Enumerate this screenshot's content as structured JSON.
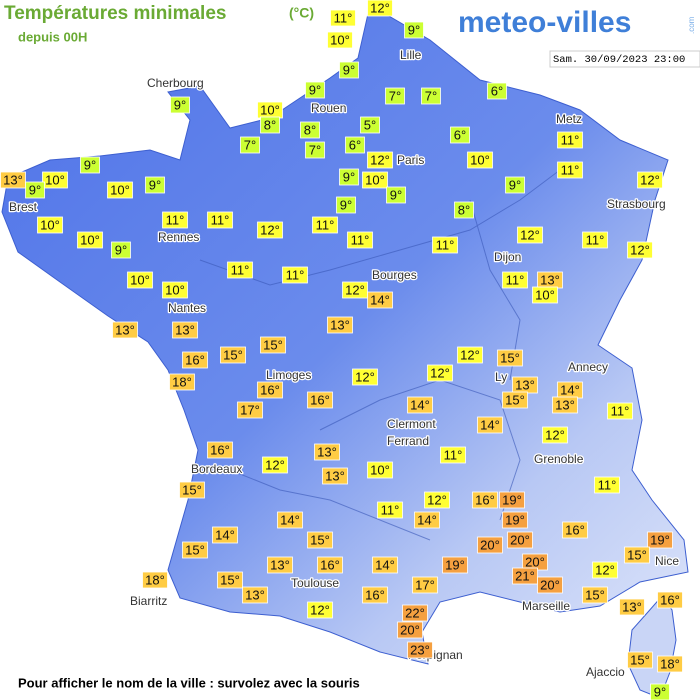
{
  "header": {
    "title": "Températures minimales",
    "unit": "(°C)",
    "subtitle": "depuis 00H",
    "logo": "meteo-villes",
    "logo_suffix": ".com",
    "timestamp": "Sam. 30/09/2023 23:00"
  },
  "cities": [
    "Cherbourg",
    "Lille",
    "Rouen",
    "Paris",
    "Metz",
    "Brest",
    "Strasbourg",
    "Rennes",
    "Dijon",
    "Bourges",
    "Nantes",
    "Annecy",
    "Limoges",
    "Ly",
    "Clermont",
    "Ferrand",
    "Grenoble",
    "Bordeaux",
    "Nice",
    "Toulouse",
    "Biarritz",
    "Marseille",
    "Perpignan",
    "Ajaccio"
  ],
  "temperatures": [
    "12°",
    "11°",
    "9°",
    "10°",
    "9°",
    "9°",
    "7°",
    "7°",
    "6°",
    "9°",
    "10°",
    "8°",
    "8°",
    "5°",
    "7°",
    "7°",
    "6°",
    "6°",
    "11°",
    "12°",
    "10°",
    "9°",
    "11°",
    "13°",
    "10°",
    "9°",
    "10°",
    "9°",
    "9°",
    "10°",
    "9°",
    "9°",
    "12°",
    "9°",
    "8°",
    "10°",
    "11°",
    "11°",
    "12°",
    "11°",
    "10°",
    "9°",
    "11°",
    "11°",
    "12°",
    "11°",
    "12°",
    "10°",
    "10°",
    "11°",
    "11°",
    "12°",
    "14°",
    "11°",
    "13°",
    "10°",
    "13°",
    "13°",
    "13°",
    "16°",
    "15°",
    "15°",
    "12°",
    "15°",
    "18°",
    "12°",
    "12°",
    "16°",
    "16°",
    "13°",
    "14°",
    "15°",
    "13°",
    "17°",
    "11°",
    "14°",
    "14°",
    "12°",
    "16°",
    "13°",
    "11°",
    "12°",
    "10°",
    "13°",
    "15°",
    "11°",
    "12°",
    "16°",
    "19°",
    "11°",
    "14°",
    "14°",
    "19°",
    "16°",
    "14°",
    "15°",
    "20°",
    "20°",
    "19°",
    "15°",
    "15°",
    "13°",
    "16°",
    "14°",
    "19°",
    "20°",
    "12°",
    "21°",
    "18°",
    "15°",
    "17°",
    "20°",
    "13°",
    "16°",
    "15°",
    "16°",
    "12°",
    "22°",
    "13°",
    "20°",
    "15°",
    "18°",
    "23°",
    "9°"
  ],
  "footer": "Pour afficher le nom de la ville : survolez avec la souris"
}
